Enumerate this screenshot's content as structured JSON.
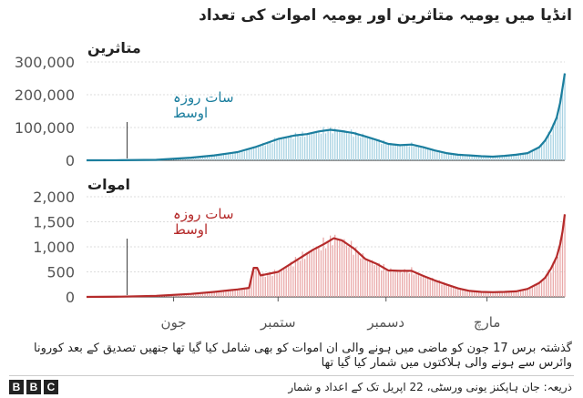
{
  "title": "انڈیا میں یومیہ متاثرین اور یومیہ اموات کی تعداد",
  "colors": {
    "cases_line": "#1b7e9e",
    "cases_fill": "#a9d3e3",
    "deaths_line": "#b52b2b",
    "deaths_fill": "#e9a9a9",
    "grid": "#dddddd",
    "axis": "#555555"
  },
  "chart_data": [
    {
      "type": "area",
      "title": "متاثرین",
      "annotation": [
        "سات روزہ",
        "اوسط"
      ],
      "ylim": [
        0,
        300000
      ],
      "y_ticks": [
        0,
        100000,
        200000,
        300000
      ],
      "y_tick_labels": [
        "0",
        "100,000",
        "200,000",
        "300,000"
      ],
      "x_ticks": [
        "جون",
        "ستمبر",
        "دسمبر",
        "مارچ"
      ],
      "x_days": [
        0,
        30,
        60,
        90,
        110,
        130,
        145,
        165,
        180,
        190,
        200,
        210,
        220,
        230,
        240,
        250,
        260,
        270,
        280,
        290,
        300,
        310,
        320,
        330,
        340,
        350,
        360,
        370,
        380,
        390,
        395,
        400,
        405,
        408,
        410,
        412
      ],
      "values": [
        0,
        200,
        1500,
        8000,
        15000,
        25000,
        40000,
        65000,
        76000,
        80000,
        88000,
        93000,
        89000,
        83000,
        73000,
        62000,
        50000,
        46000,
        48000,
        40000,
        30000,
        22000,
        17000,
        15000,
        12500,
        11000,
        13500,
        17000,
        22000,
        40000,
        60000,
        90000,
        130000,
        175000,
        220000,
        265000
      ]
    },
    {
      "type": "area",
      "title": "اموات",
      "annotation": [
        "سات روزہ",
        "اوسط"
      ],
      "ylim": [
        0,
        2000
      ],
      "y_ticks": [
        0,
        500,
        1000,
        1500,
        2000
      ],
      "y_tick_labels": [
        "0",
        "500",
        "1,000",
        "1,500",
        "2,000"
      ],
      "x_ticks": [
        "جون",
        "ستمبر",
        "دسمبر",
        "مارچ"
      ],
      "x_days": [
        0,
        30,
        60,
        90,
        110,
        130,
        140,
        144,
        147,
        150,
        165,
        180,
        195,
        205,
        213,
        220,
        230,
        240,
        250,
        260,
        270,
        280,
        290,
        300,
        310,
        320,
        330,
        340,
        350,
        360,
        370,
        380,
        390,
        395,
        400,
        405,
        408,
        410,
        412
      ],
      "values": [
        0,
        5,
        20,
        60,
        100,
        150,
        180,
        580,
        580,
        430,
        500,
        720,
        940,
        1060,
        1170,
        1130,
        970,
        760,
        660,
        530,
        520,
        520,
        420,
        330,
        250,
        170,
        120,
        100,
        95,
        100,
        110,
        160,
        280,
        380,
        560,
        800,
        1050,
        1300,
        1650
      ]
    }
  ],
  "note": "گذشتہ برس 17 جون کو ماضی میں ہونے والی ان اموات کو بھی شامل کیا گیا تھا جنھیں تصدیق کے بعد کورونا وائرس سے ہونے والی ہلاکتوں میں شمار کیا گیا تھا",
  "source": "ذریعہ: جان ہاپکنز یونی ورسٹی، 22 اپریل تک کے اعداد و شمار",
  "logo": [
    "B",
    "B",
    "C"
  ]
}
